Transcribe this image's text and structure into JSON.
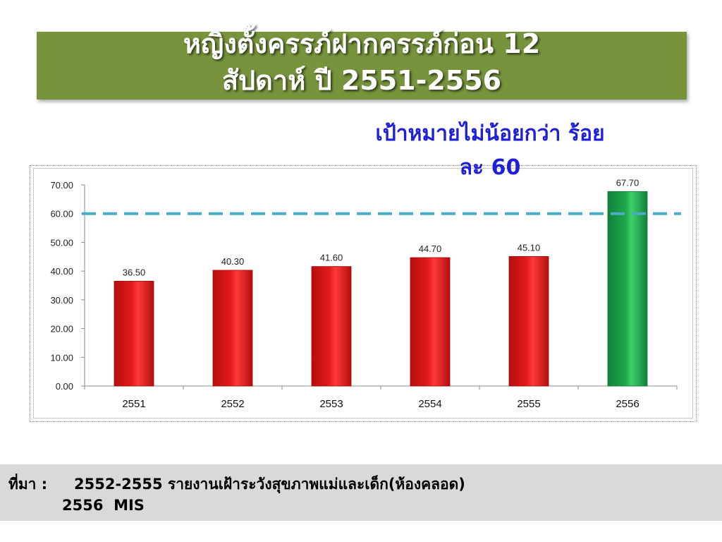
{
  "title": {
    "line1": "หญิงตั้งครรภ์ฝากครรภ์ก่อน 12",
    "line2": "สัปดาห์ ปี 2551-2556"
  },
  "target": {
    "line1": "เป้าหมายไม่น้อยกว่า ร้อย",
    "line2": "ละ 60"
  },
  "source": {
    "label": "ที่มา :",
    "line1": "2552-2555 รายงานเฝ้าระวังสุขภาพแม่และเด็ก(ห้องคลอด)",
    "line2": "2556  MIS"
  },
  "colors": {
    "title_bg": "#77933c",
    "bar_default": "#e31b1b",
    "bar_highlight": "#1ea84a",
    "target_line": "#4bacc6",
    "target_text": "#1f1fd8",
    "source_bg": "#d9d9d9"
  },
  "chart_data": {
    "type": "bar",
    "categories": [
      "2551",
      "2552",
      "2553",
      "2554",
      "2555",
      "2556"
    ],
    "values": [
      36.5,
      40.3,
      41.6,
      44.7,
      45.1,
      67.7
    ],
    "value_labels": [
      "36.50",
      "40.30",
      "41.60",
      "44.70",
      "45.10",
      "67.70"
    ],
    "highlight_index": 5,
    "target_value": 60,
    "ylim": [
      0,
      70
    ],
    "yticks": [
      0,
      10,
      20,
      30,
      40,
      50,
      60,
      70
    ],
    "ytick_labels": [
      "0.00",
      "10.00",
      "20.00",
      "30.00",
      "40.00",
      "50.00",
      "60.00",
      "70.00"
    ],
    "grid": false,
    "legend": "none"
  }
}
